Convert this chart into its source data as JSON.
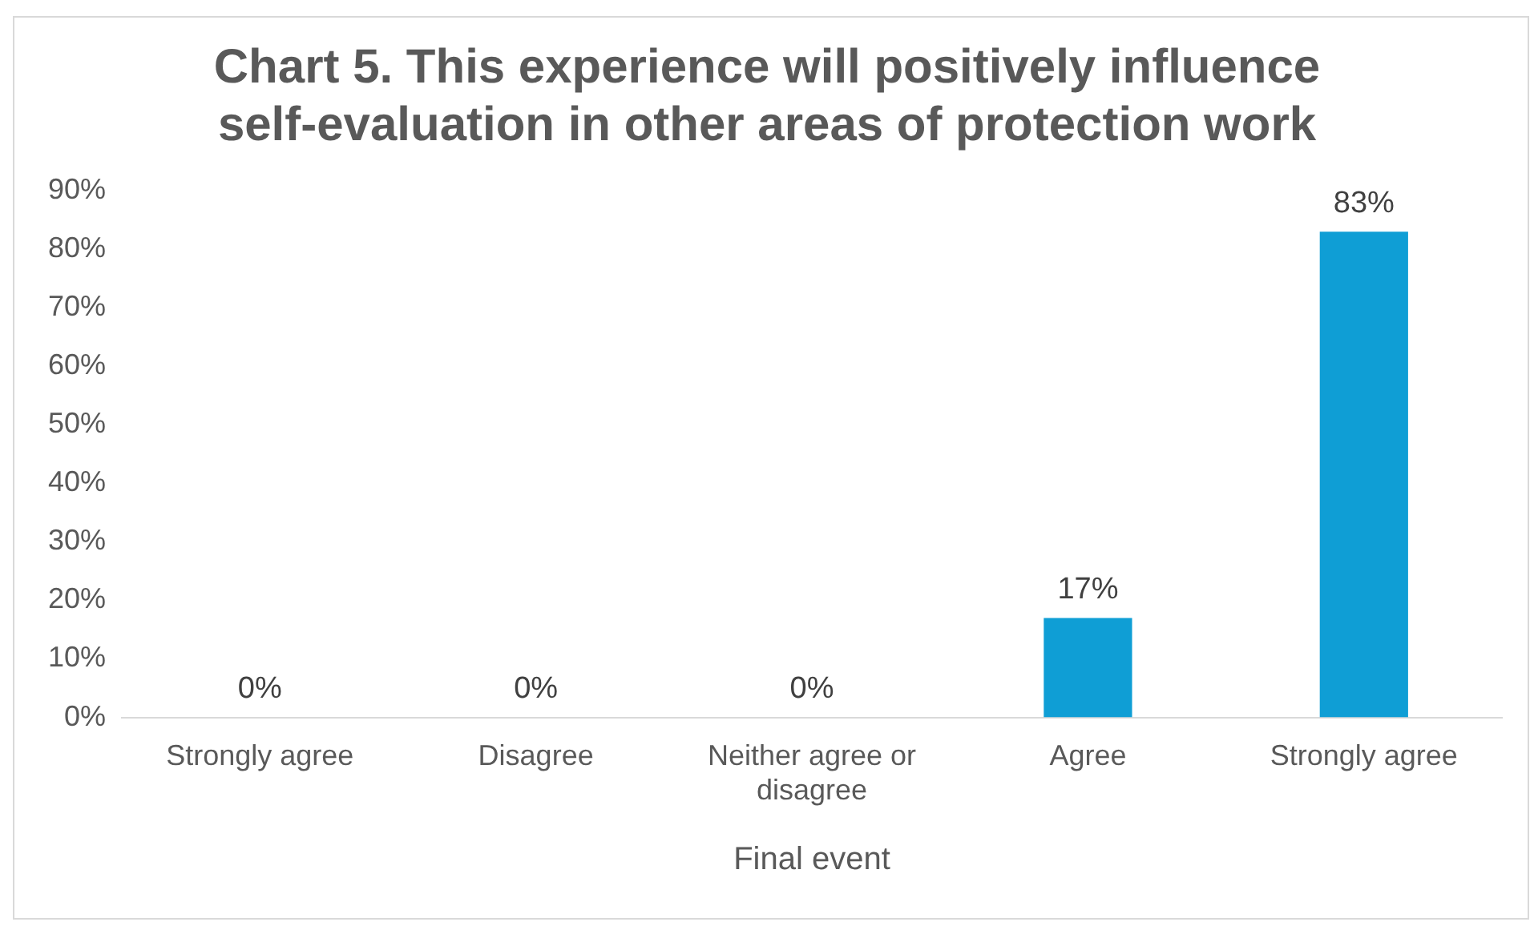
{
  "chart_data": {
    "type": "bar",
    "title": "Chart 5. This experience will positively influence self-evaluation in other areas of protection work",
    "xlabel": "Final event",
    "categories": [
      "Strongly agree",
      "Disagree",
      "Neither agree or disagree",
      "Agree",
      "Strongly agree"
    ],
    "values": [
      0,
      0,
      0,
      17,
      83
    ],
    "value_labels": [
      "0%",
      "0%",
      "0%",
      "17%",
      "83%"
    ],
    "color": "#0f9ed5",
    "ylim": [
      0,
      90
    ],
    "yticks": [
      {
        "value": 0,
        "label": "0%"
      },
      {
        "value": 10,
        "label": "10%"
      },
      {
        "value": 20,
        "label": "20%"
      },
      {
        "value": 30,
        "label": "30%"
      },
      {
        "value": 40,
        "label": "40%"
      },
      {
        "value": 50,
        "label": "50%"
      },
      {
        "value": 60,
        "label": "60%"
      },
      {
        "value": 70,
        "label": "70%"
      },
      {
        "value": 80,
        "label": "80%"
      },
      {
        "value": 90,
        "label": "90%"
      }
    ],
    "grid": false,
    "legend": false
  }
}
